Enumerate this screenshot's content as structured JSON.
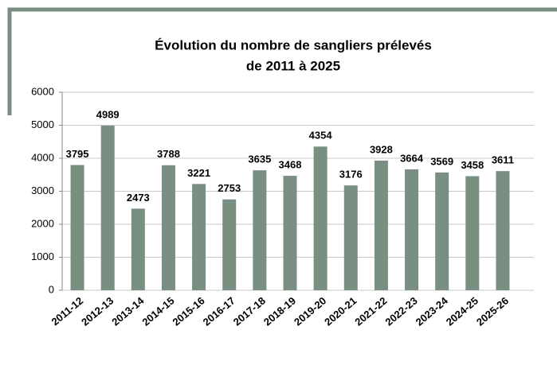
{
  "chart_data": {
    "type": "bar",
    "title": [
      "Évolution du nombre de sangliers prélevés",
      "de 2011 à 2025"
    ],
    "categories": [
      "2011-12",
      "2012-13",
      "2013-14",
      "2014-15",
      "2015-16",
      "2016-17",
      "2017-18",
      "2018-19",
      "2019-20",
      "2020-21",
      "2021-22",
      "2022-23",
      "2023-24",
      "2024-25",
      "2025-26"
    ],
    "values": [
      3795,
      4989,
      2473,
      3788,
      3221,
      2753,
      3635,
      3468,
      4354,
      3176,
      3928,
      3664,
      3569,
      3458,
      3611
    ],
    "color": "#788f81",
    "ylim": [
      0,
      6000
    ],
    "yticks": [
      0,
      1000,
      2000,
      3000,
      4000,
      5000,
      6000
    ],
    "grid": true
  }
}
